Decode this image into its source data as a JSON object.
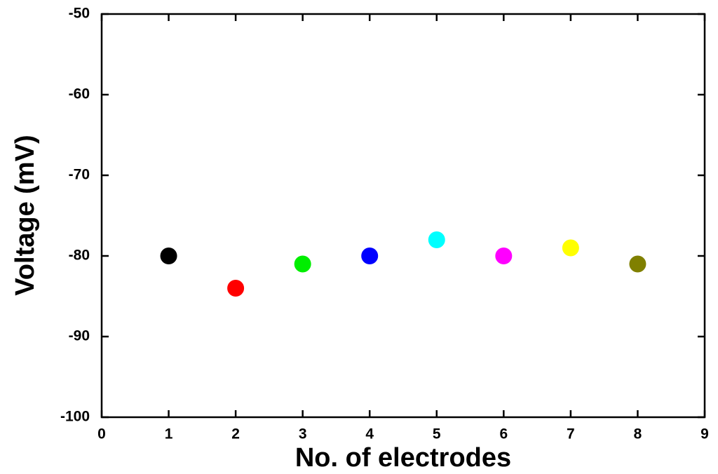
{
  "chart_data": {
    "type": "scatter",
    "x_label": "No. of electrodes",
    "y_label": "Voltage (mV)",
    "x": [
      1,
      2,
      3,
      4,
      5,
      6,
      7,
      8
    ],
    "values": [
      -80,
      -84,
      -81,
      -80,
      -78,
      -80,
      -79,
      -81
    ],
    "colors": [
      "#000000",
      "#ff0000",
      "#00ee00",
      "#0000ff",
      "#00ffff",
      "#ff00ff",
      "#ffff00",
      "#808000"
    ],
    "xlim": [
      0,
      9
    ],
    "xticks": [
      0,
      1,
      2,
      3,
      4,
      5,
      6,
      7,
      8,
      9
    ],
    "ylim": [
      -100,
      -50
    ],
    "yticks": [
      -100,
      -90,
      -80,
      -70,
      -60,
      -50
    ],
    "grid": false
  }
}
